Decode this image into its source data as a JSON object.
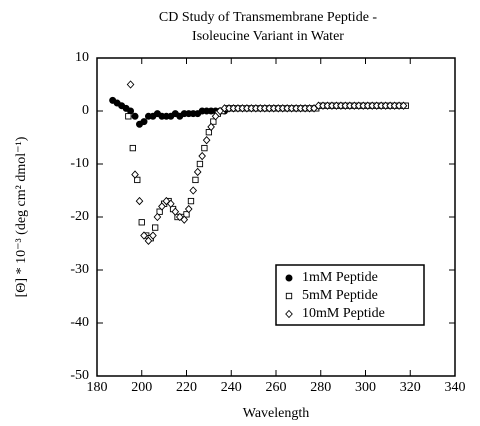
{
  "chart_data": {
    "type": "scatter",
    "title": [
      "CD Study of Transmembrane Peptide -",
      "Isoleucine Variant in Water"
    ],
    "xlabel": "Wavelength",
    "ylabel": "[Θ] * 10⁻³ (deg cm² dmol⁻¹)",
    "xlim": [
      180,
      340
    ],
    "xticks": [
      180,
      200,
      220,
      240,
      260,
      280,
      300,
      320,
      340
    ],
    "ylim": [
      -50,
      10
    ],
    "yticks": [
      -50,
      -40,
      -30,
      -20,
      -10,
      0,
      10
    ],
    "legend": "lower right",
    "series": [
      {
        "name": "1mM Peptide",
        "color": "#000000",
        "marker": "circle",
        "x": [
          187,
          189,
          191,
          193,
          195,
          197,
          199,
          201,
          203,
          205,
          207,
          209,
          211,
          213,
          215,
          217,
          219,
          221,
          223,
          225,
          227,
          229,
          231,
          233,
          235,
          237,
          239,
          241
        ],
        "values": [
          2,
          1.5,
          1,
          0.5,
          0,
          -1,
          -2.5,
          -2,
          -1,
          -1,
          -0.5,
          -1,
          -1,
          -1,
          -0.5,
          -1,
          -0.5,
          -0.5,
          -0.5,
          -0.5,
          0,
          0,
          0,
          0,
          0,
          0,
          0.5,
          0.5
        ]
      },
      {
        "name": "5mM Peptide",
        "color": "#000000",
        "marker": "square",
        "x": [
          194,
          196,
          198,
          200,
          202,
          204,
          206,
          208,
          210,
          212,
          214,
          216,
          218,
          220,
          222,
          224,
          226,
          228,
          230,
          232,
          234,
          236,
          238,
          240,
          242,
          244,
          246,
          248,
          250,
          252,
          254,
          256,
          258,
          260,
          262,
          264,
          266,
          268,
          270,
          272,
          274,
          276,
          278,
          280,
          282,
          284,
          286,
          288,
          290,
          292,
          294,
          296,
          298,
          300,
          302,
          304,
          306,
          308,
          310,
          312,
          314,
          316,
          318
        ],
        "values": [
          -1,
          -7,
          -13,
          -21,
          -23.5,
          -24,
          -22,
          -19,
          -17.5,
          -17,
          -18.5,
          -20,
          -20,
          -19.5,
          -17,
          -13,
          -10,
          -7,
          -4,
          -2,
          -0.5,
          0,
          0.5,
          0.5,
          0.5,
          0.5,
          0.5,
          0.5,
          0.5,
          0.5,
          0.5,
          0.5,
          0.5,
          0.5,
          0.5,
          0.5,
          0.5,
          0.5,
          0.5,
          0.5,
          0.5,
          0.5,
          0.5,
          1,
          1,
          1,
          1,
          1,
          1,
          1,
          1,
          1,
          1,
          1,
          1,
          1,
          1,
          1,
          1,
          1,
          1,
          1,
          1
        ]
      },
      {
        "name": "10mM Peptide",
        "color": "#000000",
        "marker": "diamond",
        "x": [
          195,
          197,
          199,
          201,
          203,
          205,
          207,
          209,
          211,
          213,
          215,
          217,
          219,
          221,
          223,
          225,
          227,
          229,
          231,
          233,
          235,
          237,
          239,
          241,
          243,
          245,
          247,
          249,
          251,
          253,
          255,
          257,
          259,
          261,
          263,
          265,
          267,
          269,
          271,
          273,
          275,
          277,
          279,
          281,
          283,
          285,
          287,
          289,
          291,
          293,
          295,
          297,
          299,
          301,
          303,
          305,
          307,
          309,
          311,
          313,
          315,
          317
        ],
        "values": [
          5,
          -12,
          -17,
          -23.5,
          -24.5,
          -23.5,
          -20,
          -18,
          -17,
          -17.5,
          -19,
          -20,
          -20.5,
          -18.5,
          -15,
          -11.5,
          -8.5,
          -5.5,
          -3,
          -1,
          0,
          0.5,
          0.5,
          0.5,
          0.5,
          0.5,
          0.5,
          0.5,
          0.5,
          0.5,
          0.5,
          0.5,
          0.5,
          0.5,
          0.5,
          0.5,
          0.5,
          0.5,
          0.5,
          0.5,
          0.5,
          0.5,
          1,
          1,
          1,
          1,
          1,
          1,
          1,
          1,
          1,
          1,
          1,
          1,
          1,
          1,
          1,
          1,
          1,
          1,
          1,
          1
        ]
      }
    ]
  }
}
